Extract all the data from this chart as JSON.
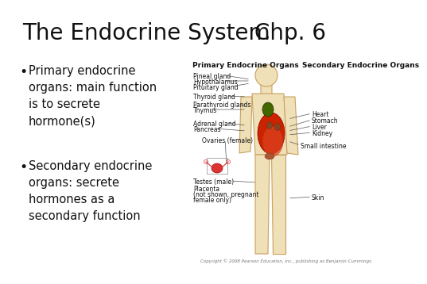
{
  "background_color": "#ffffff",
  "title": "The Endocrine System",
  "title2": "Chp. 6",
  "title_fontsize": 20,
  "text_color": "#111111",
  "bullet1_text": "Primary endocrine\norgans: main function\nis to secrete\nhormone(s)",
  "bullet2_text": "Secondary endocrine\norgans: secrete\nhormones as a\nsecondary function",
  "bullet_fontsize": 10.5,
  "body_color": "#f0e0b8",
  "body_edge_color": "#c8a060",
  "organ_red": "#cc2200",
  "organ_green": "#446600",
  "organ_brown": "#a05020",
  "copyright_text": "Copyright © 2008 Pearson Education, Inc., publishing as Benjamin Cummings",
  "label_fontsize": 5.5,
  "header_fontsize": 6.5
}
